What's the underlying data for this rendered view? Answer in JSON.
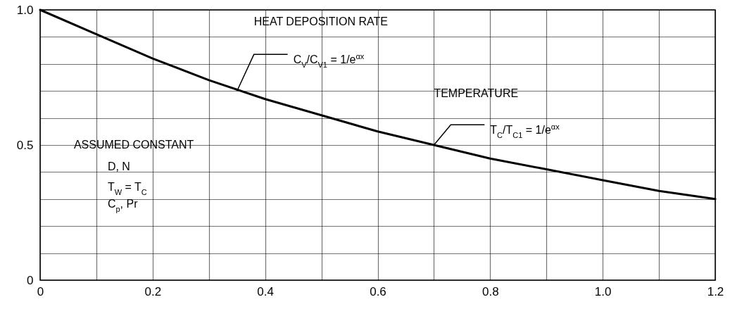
{
  "chart_data": {
    "type": "line",
    "x": [
      0,
      0.1,
      0.2,
      0.3,
      0.4,
      0.5,
      0.6,
      0.7,
      0.8,
      0.9,
      1.0,
      1.1,
      1.2
    ],
    "series": [
      {
        "color": "#000000",
        "values": [
          1.0,
          0.91,
          0.82,
          0.74,
          0.67,
          0.61,
          0.55,
          0.5,
          0.45,
          0.41,
          0.37,
          0.33,
          0.3
        ]
      }
    ],
    "xlim": [
      0,
      1.2
    ],
    "ylim": [
      0,
      1.0
    ],
    "xticks": [
      0,
      {
        "value": 0.1,
        "label": null
      },
      0.2,
      {
        "value": 0.3,
        "label": null
      },
      0.4,
      {
        "value": 0.5,
        "label": null
      },
      0.6,
      {
        "value": 0.7,
        "label": null
      },
      0.8,
      {
        "value": 0.9,
        "label": null
      },
      {
        "value": 1.0,
        "label": "1.0"
      },
      {
        "value": 1.1,
        "label": null
      },
      1.2
    ],
    "yticks": [
      0,
      {
        "value": 0.1,
        "label": null
      },
      {
        "value": 0.2,
        "label": null
      },
      {
        "value": 0.3,
        "label": null
      },
      {
        "value": 0.4,
        "label": null
      },
      0.5,
      {
        "value": 0.6,
        "label": null
      },
      {
        "value": 0.7,
        "label": null
      },
      {
        "value": 0.8,
        "label": null
      },
      {
        "value": 0.9,
        "label": null
      },
      {
        "value": 1.0,
        "label": "1.0"
      }
    ],
    "grid": true,
    "marker": "none",
    "line_style": "solid",
    "annotations": [
      "HEAT DEPOSITION RATE",
      {
        "text": "C$_{V}$/C$_{V1}$ = 1/e$^{αx}$",
        "x": 0.35,
        "y": 0.7
      },
      "TEMPERATURE",
      {
        "text": "T$_{C}$/T$_{C1}$ = 1/e$^{αx}$",
        "x": 0.7,
        "y": 0.5
      },
      "ASSUMED CONSTANT",
      "D, N",
      "T$_{W}$ = T$_{C}$",
      "C$_{p}$, Pr"
    ]
  }
}
